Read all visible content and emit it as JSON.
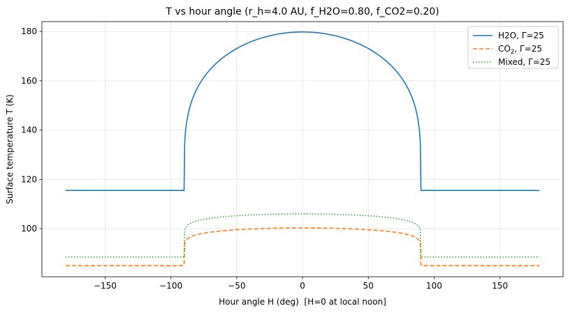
{
  "chart_data": {
    "type": "line",
    "title": "T vs hour angle (r_h=4.0 AU, f_H2O=0.80, f_CO2=0.20)",
    "xlabel": "Hour angle H (deg)  [H=0 at local noon]",
    "ylabel": "Surface temperature T (K)",
    "xlim": [
      -198,
      198
    ],
    "ylim": [
      80.5,
      184
    ],
    "xticks": [
      -150,
      -100,
      -50,
      0,
      50,
      100,
      150
    ],
    "yticks": [
      100,
      120,
      140,
      160,
      180
    ],
    "xtick_labels": [
      "−150",
      "−100",
      "−50",
      "0",
      "50",
      "100",
      "150"
    ],
    "ytick_labels": [
      "100",
      "120",
      "140",
      "160",
      "180"
    ],
    "grid": true,
    "legend_position": "top-right",
    "series": [
      {
        "name": "H2O, Γ=25",
        "legend_base": "H2O, Γ=25",
        "legend_sub": "",
        "legend_tail": "",
        "color": "#1f77b4",
        "style": "solid",
        "night": 115.5,
        "peak": 179.8,
        "exponent": 0.25
      },
      {
        "name": "CO2, Γ=25",
        "legend_base": "CO",
        "legend_sub": "2",
        "legend_tail": ", Γ=25",
        "color": "#ff7f0e",
        "style": "dashed",
        "night": 85.0,
        "peak": 100.3,
        "exponent": 0.11
      },
      {
        "name": "Mixed, Γ=25",
        "legend_base": "Mixed, Γ=25",
        "legend_sub": "",
        "legend_tail": "",
        "color": "#2ca02c",
        "style": "dotted",
        "night": 88.5,
        "peak": 106.0,
        "exponent": 0.1
      }
    ]
  }
}
